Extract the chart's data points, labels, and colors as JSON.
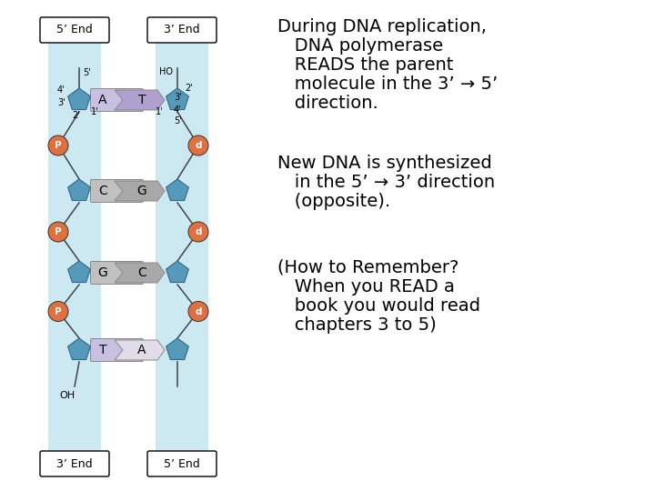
{
  "bg_color": "#ffffff",
  "dna_bg_color": "#cce8f0",
  "phosphate_color_left": "#e07040",
  "phosphate_color_right": "#e07040",
  "sugar_color": "#5b9ab5",
  "base_A_color": "#c8c0e0",
  "base_T_left_color": "#c8c0e0",
  "base_T_right_color": "#e8e4f4",
  "base_CG_color": "#c0c0c0",
  "text_block1": [
    "During DNA replication,",
    "   DNA polymerase",
    "   READS the parent",
    "   molecule in the 3’ → 5’",
    "   direction."
  ],
  "text_block2": [
    "New DNA is synthesized",
    "   in the 5’ → 3’ direction",
    "   (opposite)."
  ],
  "text_block3": [
    "(How to Remember?",
    "   When you READ a",
    "   book you would read",
    "   chapters 3 to 5)"
  ],
  "fontsize_main": 14,
  "left_label_top": "5’ End",
  "left_label_bot": "3’ End",
  "right_label_top": "3’ End",
  "right_label_bot": "5’ End",
  "base_pairs": [
    {
      "left": "A",
      "right": "T",
      "left_col": "#c8c0e0",
      "right_col": "#b0a0d0"
    },
    {
      "left": "C",
      "right": "G",
      "left_col": "#c0c0c0",
      "right_col": "#a8a8a8"
    },
    {
      "left": "G",
      "right": "C",
      "left_col": "#c0c0c0",
      "right_col": "#a8a8a8"
    },
    {
      "left": "T",
      "right": "A",
      "left_col": "#c8c0e0",
      "right_col": "#e0dce8"
    }
  ]
}
